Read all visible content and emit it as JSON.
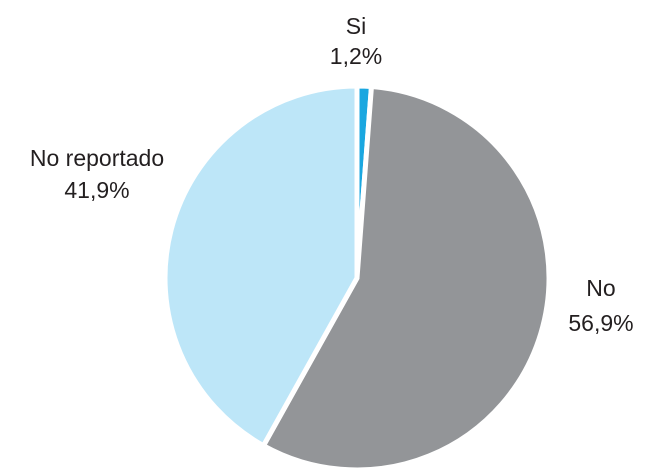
{
  "chart_data": {
    "type": "pie",
    "categories": [
      "Si",
      "No",
      "No reportado"
    ],
    "values": [
      1.2,
      56.9,
      41.9
    ],
    "value_labels": [
      "1,2%",
      "56,9%",
      "41,9%"
    ],
    "colors": [
      "#1aa7e0",
      "#939598",
      "#bde6f8"
    ]
  }
}
